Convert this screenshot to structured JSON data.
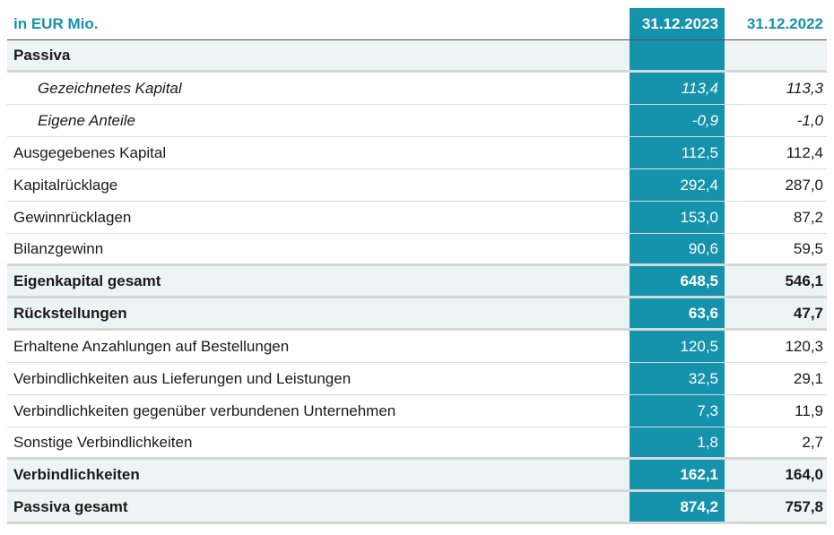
{
  "table": {
    "header": {
      "unit": "in EUR Mio.",
      "col1": "31.12.2023",
      "col2": "31.12.2022"
    },
    "rows": [
      {
        "label": "Passiva",
        "v1": "",
        "v2": ""
      },
      {
        "label": "Gezeichnetes Kapital",
        "v1": "113,4",
        "v2": "113,3"
      },
      {
        "label": "Eigene Anteile",
        "v1": "-0,9",
        "v2": "-1,0"
      },
      {
        "label": "Ausgegebenes Kapital",
        "v1": "112,5",
        "v2": "112,4"
      },
      {
        "label": "Kapitalrücklage",
        "v1": "292,4",
        "v2": "287,0"
      },
      {
        "label": "Gewinnrücklagen",
        "v1": "153,0",
        "v2": "87,2"
      },
      {
        "label": "Bilanzgewinn",
        "v1": "90,6",
        "v2": "59,5"
      },
      {
        "label": "Eigenkapital gesamt",
        "v1": "648,5",
        "v2": "546,1"
      },
      {
        "label": "Rückstellungen",
        "v1": "63,6",
        "v2": "47,7"
      },
      {
        "label": "Erhaltene Anzahlungen auf Bestellungen",
        "v1": "120,5",
        "v2": "120,3"
      },
      {
        "label": "Verbindlichkeiten aus Lieferungen und Leistungen",
        "v1": "32,5",
        "v2": "29,1"
      },
      {
        "label": "Verbindlichkeiten gegenüber verbundenen Unternehmen",
        "v1": "7,3",
        "v2": "11,9"
      },
      {
        "label": "Sonstige Verbindlichkeiten",
        "v1": "1,8",
        "v2": "2,7"
      },
      {
        "label": "Verbindlichkeiten",
        "v1": "162,1",
        "v2": "164,0"
      },
      {
        "label": "Passiva gesamt",
        "v1": "874,2",
        "v2": "757,8"
      }
    ]
  },
  "colors": {
    "accent": "#1592ac",
    "row_shade": "#eef4f6",
    "divider": "#d9dde0"
  }
}
